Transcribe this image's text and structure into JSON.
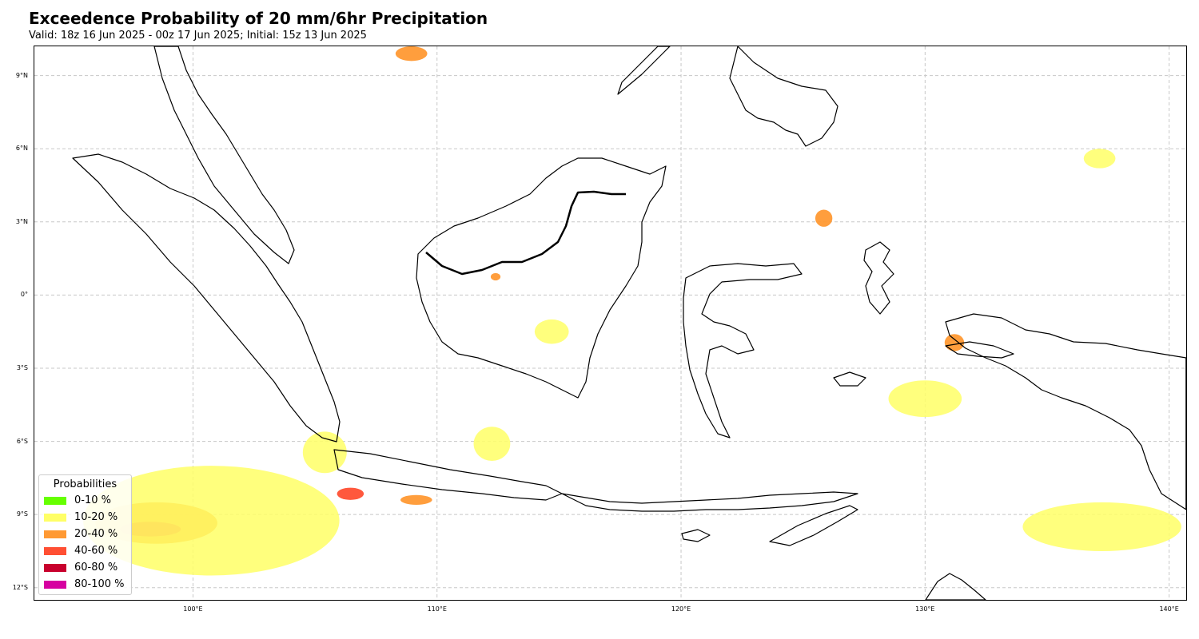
{
  "header": {
    "title": "Exceedence Probability of 20 mm/6hr Precipitation",
    "subtitle": "Valid: 18z 16 Jun 2025 - 00z 17 Jun 2025; Initial: 15z 13 Jun 2025"
  },
  "map": {
    "lon_range": [
      93.5,
      140.7
    ],
    "lat_range": [
      -12.5,
      10.2
    ],
    "grid": true,
    "lat_ticks": [
      {
        "value": 9,
        "label": "9°N"
      },
      {
        "value": 6,
        "label": "6°N"
      },
      {
        "value": 3,
        "label": "3°N"
      },
      {
        "value": 0,
        "label": "0°"
      },
      {
        "value": -3,
        "label": "3°S"
      },
      {
        "value": -6,
        "label": "6°S"
      },
      {
        "value": -9,
        "label": "9°S"
      },
      {
        "value": -12,
        "label": "12°S"
      }
    ],
    "lon_ticks": [
      {
        "value": 100,
        "label": "100°E"
      },
      {
        "value": 110,
        "label": "110°E"
      },
      {
        "value": 120,
        "label": "120°E"
      },
      {
        "value": 130,
        "label": "130°E"
      },
      {
        "value": 140,
        "label": "140°E"
      }
    ],
    "coastline_color": "#000000",
    "grid_color": "#c8c8c8"
  },
  "legend": {
    "title": "Probabilities",
    "placement": "bottom-left",
    "items": [
      {
        "label": "0-10 %",
        "color": "#66ff00"
      },
      {
        "label": "10-20 %",
        "color": "#ffff66"
      },
      {
        "label": "20-40 %",
        "color": "#ff9933"
      },
      {
        "label": "40-60 %",
        "color": "#ff4f33"
      },
      {
        "label": "60-80 %",
        "color": "#c8002d"
      },
      {
        "label": "80-100 %",
        "color": "#d600a0"
      }
    ]
  },
  "probability_areas": [
    {
      "region": "north-of-borneo-sea",
      "class": "20-40 %",
      "color": "#ff9933",
      "lon": [
        108.3,
        109.6
      ],
      "lat": [
        9.6,
        10.2
      ]
    },
    {
      "region": "sarawak-west",
      "class": "20-40 %",
      "color": "#ff9933",
      "lon": [
        112.2,
        112.6
      ],
      "lat": [
        0.6,
        0.9
      ]
    },
    {
      "region": "central-kalimantan",
      "class": "10-20 %",
      "color": "#ffff66",
      "lon": [
        114.0,
        115.4
      ],
      "lat": [
        -2.0,
        -1.0
      ]
    },
    {
      "region": "java-sea-south",
      "class": "10-20 %",
      "color": "#ffff66",
      "lon": [
        111.5,
        113.0
      ],
      "lat": [
        -6.8,
        -5.4
      ]
    },
    {
      "region": "sunda-strait",
      "class": "10-20 %",
      "color": "#ffff66",
      "lon": [
        104.5,
        106.3
      ],
      "lat": [
        -7.3,
        -5.6
      ]
    },
    {
      "region": "west-java-south",
      "class": "40-60 %",
      "color": "#ff4f33",
      "lon": [
        105.9,
        107.0
      ],
      "lat": [
        -8.4,
        -7.9
      ]
    },
    {
      "region": "indian-ocean-sw",
      "class": "20-40 %",
      "color": "#ff9933",
      "lon": [
        96.0,
        101.0
      ],
      "lat": [
        -10.2,
        -8.5
      ]
    },
    {
      "region": "indian-ocean-sw-core",
      "class": "40-60 %",
      "color": "#ff4f33",
      "lon": [
        97.0,
        99.5
      ],
      "lat": [
        -9.9,
        -9.3
      ]
    },
    {
      "region": "indian-ocean-outer",
      "class": "10-20 %",
      "color": "#ffff66",
      "lon": [
        95.5,
        106.0
      ],
      "lat": [
        -11.5,
        -7.0
      ]
    },
    {
      "region": "molucca-sea-north",
      "class": "20-40 %",
      "color": "#ff9933",
      "lon": [
        125.5,
        126.2
      ],
      "lat": [
        2.8,
        3.5
      ]
    },
    {
      "region": "pacific-northeast",
      "class": "10-20 %",
      "color": "#ffff66",
      "lon": [
        136.5,
        137.8
      ],
      "lat": [
        5.2,
        6.0
      ]
    },
    {
      "region": "seram",
      "class": "20-40 %",
      "color": "#ff9933",
      "lon": [
        130.8,
        131.6
      ],
      "lat": [
        -2.3,
        -1.6
      ]
    },
    {
      "region": "banda-sea",
      "class": "10-20 %",
      "color": "#ffff66",
      "lon": [
        128.5,
        131.5
      ],
      "lat": [
        -5.0,
        -3.5
      ]
    },
    {
      "region": "arafura-sea",
      "class": "10-20 %",
      "color": "#ffff66",
      "lon": [
        134.0,
        140.5
      ],
      "lat": [
        -10.5,
        -8.5
      ]
    },
    {
      "region": "flores-bali",
      "class": "20-40 %",
      "color": "#ff9933",
      "lon": [
        108.5,
        109.8
      ],
      "lat": [
        -8.6,
        -8.2
      ]
    }
  ]
}
